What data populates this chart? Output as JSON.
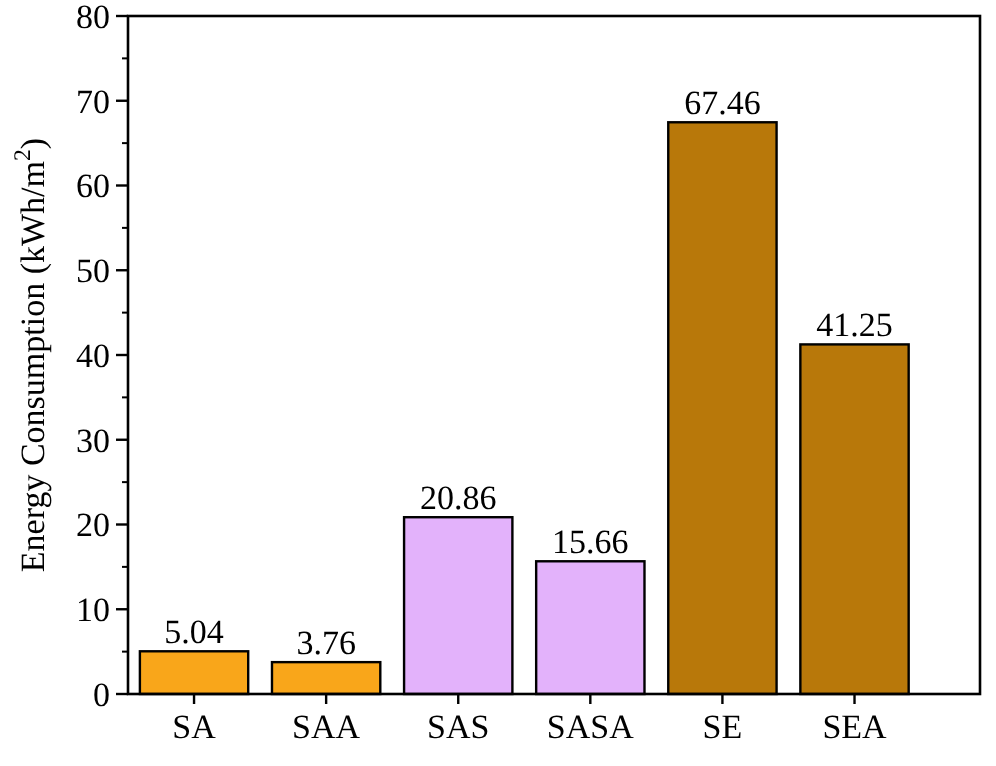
{
  "chart_data": {
    "type": "bar",
    "ylabel": "Energy Consumption (kWh/m$^{2}$)",
    "categories": [
      "SA",
      "SAA",
      "SAS",
      "SASA",
      "SE",
      "SEA"
    ],
    "values": [
      5.04,
      3.76,
      20.86,
      15.66,
      67.46,
      41.25
    ],
    "colors": [
      "#f9a61a",
      "#f9a61a",
      "#e3b2fb",
      "#e3b2fb",
      "#b8780a",
      "#b8780a"
    ],
    "ylim": [
      0,
      80
    ],
    "yticks": [
      0,
      10,
      20,
      30,
      40,
      50,
      60,
      70,
      80
    ],
    "data_labels": true
  }
}
